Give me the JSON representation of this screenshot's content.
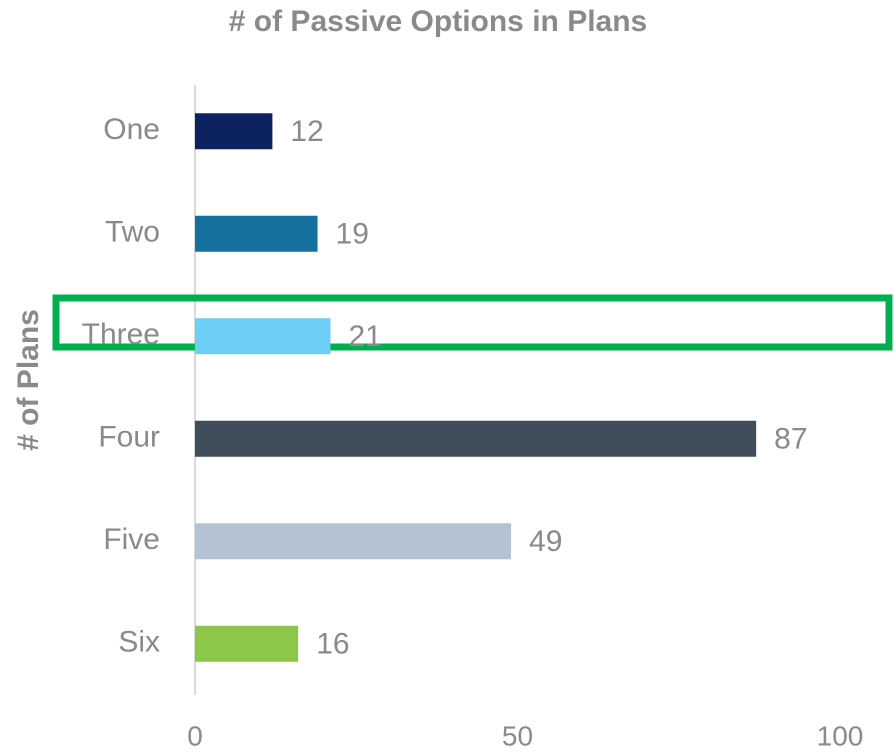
{
  "chart_data": {
    "type": "bar",
    "orientation": "horizontal",
    "title": "# of Passive Options in Plans",
    "y_label": "# of Plans",
    "categories": [
      "One",
      "Two",
      "Three",
      "Four",
      "Five",
      "Six"
    ],
    "values": [
      12,
      19,
      21,
      87,
      49,
      16
    ],
    "colors": [
      "#0d2260",
      "#16709e",
      "#6dcff6",
      "#404e5c",
      "#b3c3d3",
      "#8dc74a"
    ],
    "xlim": [
      0,
      100
    ],
    "xticks": [
      0,
      50,
      100
    ],
    "grid": false
  }
}
